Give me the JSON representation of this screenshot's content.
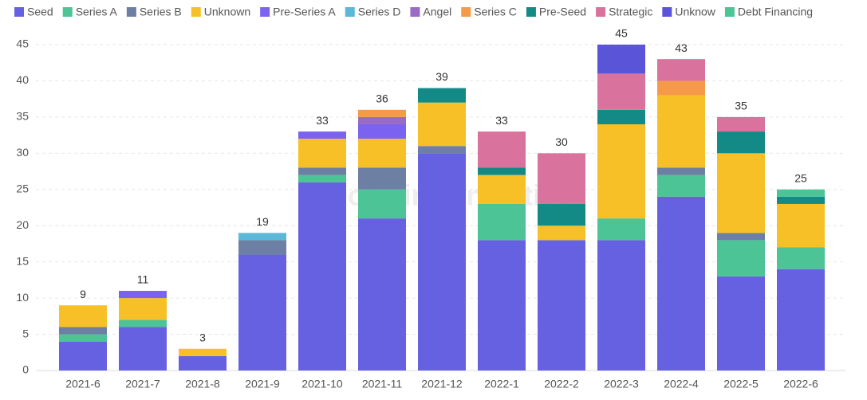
{
  "chart_data": {
    "type": "stacked-bar",
    "watermark": "Footprint Analytics",
    "categories": [
      "2021-6",
      "2021-7",
      "2021-8",
      "2021-9",
      "2021-10",
      "2021-11",
      "2021-12",
      "2022-1",
      "2022-2",
      "2022-3",
      "2022-4",
      "2022-5",
      "2022-6"
    ],
    "series": [
      {
        "name": "Seed",
        "color": "#6661e0",
        "values": [
          4,
          6,
          2,
          16,
          26,
          21,
          30,
          18,
          18,
          18,
          24,
          13,
          14
        ]
      },
      {
        "name": "Series A",
        "color": "#4cc496",
        "values": [
          1,
          1,
          0,
          0,
          1,
          4,
          0,
          5,
          0,
          3,
          3,
          5,
          3
        ]
      },
      {
        "name": "Series B",
        "color": "#6d7fa3",
        "values": [
          1,
          0,
          0,
          2,
          1,
          3,
          1,
          0,
          0,
          0,
          1,
          1,
          0
        ]
      },
      {
        "name": "Unknown",
        "color": "#f6c026",
        "values": [
          3,
          3,
          1,
          0,
          4,
          4,
          6,
          4,
          2,
          13,
          10,
          11,
          6
        ]
      },
      {
        "name": "Pre-Series A",
        "color": "#7c62f0",
        "values": [
          0,
          1,
          0,
          0,
          1,
          2,
          0,
          0,
          0,
          0,
          0,
          0,
          0
        ]
      },
      {
        "name": "Series D",
        "color": "#5cb8d9",
        "values": [
          0,
          0,
          0,
          1,
          0,
          0,
          0,
          0,
          0,
          0,
          0,
          0,
          0
        ]
      },
      {
        "name": "Angel",
        "color": "#9a6bc4",
        "values": [
          0,
          0,
          0,
          0,
          0,
          1,
          0,
          0,
          0,
          0,
          0,
          0,
          0
        ]
      },
      {
        "name": "Series C",
        "color": "#f59a48",
        "values": [
          0,
          0,
          0,
          0,
          0,
          1,
          0,
          0,
          0,
          0,
          2,
          0,
          0
        ]
      },
      {
        "name": "Pre-Seed",
        "color": "#138a86",
        "values": [
          0,
          0,
          0,
          0,
          0,
          0,
          2,
          1,
          3,
          2,
          0,
          3,
          1
        ]
      },
      {
        "name": "Strategic",
        "color": "#d9729d",
        "values": [
          0,
          0,
          0,
          0,
          0,
          0,
          0,
          5,
          7,
          5,
          3,
          2,
          0
        ]
      },
      {
        "name": "Unknow",
        "color": "#5a54d9",
        "values": [
          0,
          0,
          0,
          0,
          0,
          0,
          0,
          0,
          0,
          4,
          0,
          0,
          0
        ]
      },
      {
        "name": "Debt Financing",
        "color": "#4cc496",
        "values": [
          0,
          0,
          0,
          0,
          0,
          0,
          0,
          0,
          0,
          0,
          0,
          0,
          1
        ]
      }
    ],
    "totals": [
      9,
      11,
      3,
      19,
      33,
      36,
      39,
      33,
      30,
      45,
      43,
      35,
      25
    ],
    "ylim": [
      0,
      45
    ],
    "yticks": [
      0,
      5,
      10,
      15,
      20,
      25,
      30,
      35,
      40,
      45
    ],
    "grid": true
  }
}
